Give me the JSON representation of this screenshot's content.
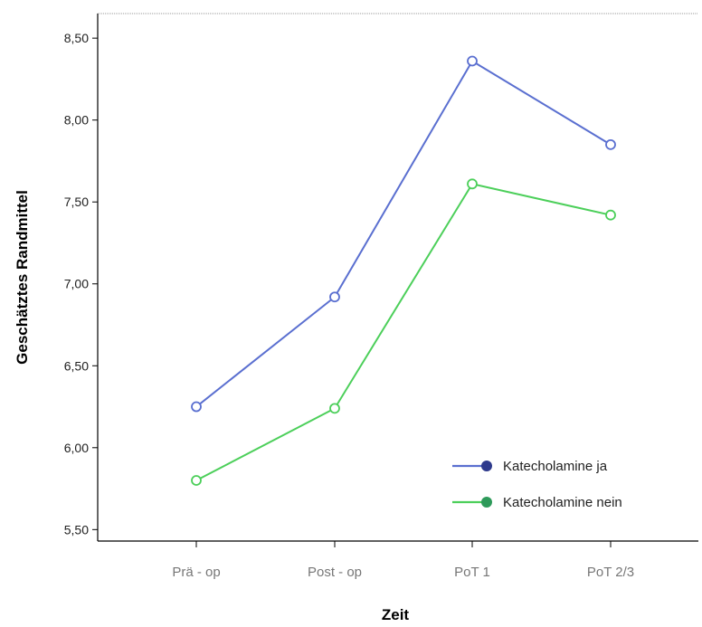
{
  "chart_data": {
    "type": "line",
    "categories": [
      "Prä - op",
      "Post - op",
      "PoT 1",
      "PoT 2/3"
    ],
    "ylabel": "Geschätztes Randmittel",
    "xlabel": "Zeit",
    "ylim": [
      5.43,
      8.65
    ],
    "yticks": [
      5.5,
      6.0,
      6.5,
      7.0,
      7.5,
      8.0,
      8.5
    ],
    "ytick_labels": [
      "5,50",
      "6,00",
      "6,50",
      "7,00",
      "7,50",
      "8,00",
      "8,50"
    ],
    "grid": false,
    "legend_position": "bottom-right",
    "series": [
      {
        "name": "Katecholamine ja",
        "color": "#5a6fd0",
        "marker_color": "#2e3a8c",
        "values": [
          6.25,
          6.92,
          8.36,
          7.85
        ]
      },
      {
        "name": "Katecholamine nein",
        "color": "#4ccf5a",
        "marker_color": "#2e9a5a",
        "values": [
          5.8,
          6.24,
          7.61,
          7.42
        ]
      }
    ]
  }
}
